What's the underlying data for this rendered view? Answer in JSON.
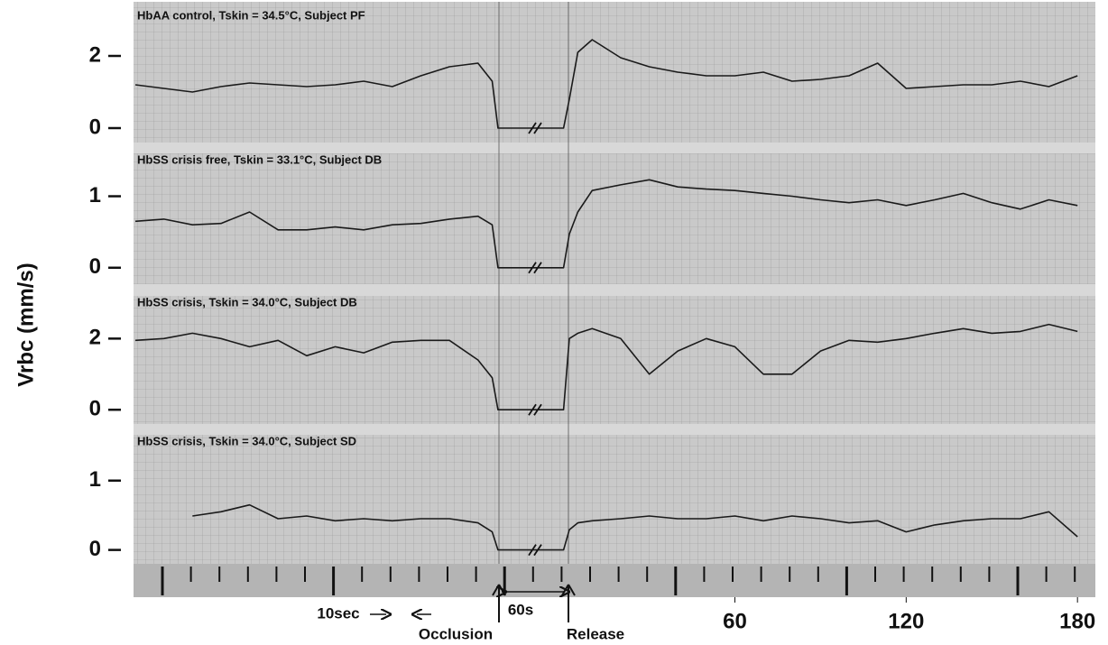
{
  "ylabel": "Vrbc (mm/s)",
  "annotations": {
    "ten_sec": "10sec",
    "sixty_s": "60s",
    "occlusion": "Occlusion",
    "release": "Release"
  },
  "chart_data": [
    {
      "type": "line",
      "title": "HbAA control, Tskin = 34.5°C, Subject PF",
      "x": [
        -150,
        -140,
        -130,
        -120,
        -110,
        -100,
        -90,
        -80,
        -70,
        -60,
        -50,
        -40,
        -30,
        -25,
        -23,
        0,
        2,
        5,
        10,
        20,
        30,
        40,
        50,
        60,
        70,
        80,
        90,
        100,
        110,
        120,
        130,
        140,
        150,
        160,
        170,
        180
      ],
      "values": [
        1.2,
        1.1,
        1.0,
        1.15,
        1.25,
        1.2,
        1.15,
        1.2,
        1.3,
        1.15,
        1.45,
        1.7,
        1.8,
        1.3,
        0,
        0,
        0.8,
        2.1,
        2.45,
        1.95,
        1.7,
        1.55,
        1.45,
        1.45,
        1.55,
        1.3,
        1.35,
        1.45,
        1.8,
        1.1,
        1.15,
        1.2,
        1.2,
        1.3,
        1.15,
        1.45
      ],
      "color": "#1a1a1a",
      "xlim": [
        -150,
        185
      ],
      "ylim": [
        -0.4,
        3.3
      ],
      "yticks": [
        0,
        2
      ]
    },
    {
      "type": "line",
      "title": "HbSS crisis free, Tskin = 33.1°C, Subject DB",
      "x": [
        -150,
        -140,
        -130,
        -120,
        -110,
        -100,
        -90,
        -80,
        -70,
        -60,
        -50,
        -40,
        -30,
        -25,
        -23,
        0,
        2,
        5,
        10,
        20,
        30,
        40,
        50,
        60,
        70,
        80,
        90,
        100,
        110,
        120,
        130,
        140,
        150,
        160,
        170,
        180
      ],
      "values": [
        0.65,
        0.68,
        0.6,
        0.62,
        0.78,
        0.53,
        0.53,
        0.57,
        0.53,
        0.6,
        0.62,
        0.68,
        0.72,
        0.6,
        0,
        0,
        0.47,
        0.78,
        1.08,
        1.16,
        1.23,
        1.13,
        1.1,
        1.08,
        1.04,
        1.0,
        0.95,
        0.91,
        0.95,
        0.87,
        0.95,
        1.04,
        0.91,
        0.82,
        0.95,
        0.87
      ],
      "color": "#1a1a1a",
      "xlim": [
        -150,
        185
      ],
      "ylim": [
        -0.23,
        1.6
      ],
      "yticks": [
        0,
        1
      ]
    },
    {
      "type": "line",
      "title": "HbSS crisis, Tskin = 34.0°C, Subject DB",
      "x": [
        -150,
        -140,
        -130,
        -120,
        -110,
        -100,
        -90,
        -80,
        -70,
        -60,
        -50,
        -40,
        -30,
        -25,
        -23,
        0,
        2,
        5,
        10,
        20,
        30,
        40,
        50,
        60,
        70,
        80,
        90,
        100,
        110,
        120,
        130,
        140,
        150,
        160,
        170,
        180
      ],
      "values": [
        1.95,
        2.0,
        2.15,
        2.0,
        1.77,
        1.95,
        1.52,
        1.77,
        1.6,
        1.9,
        1.95,
        1.95,
        1.4,
        0.9,
        0,
        0,
        2.0,
        2.15,
        2.28,
        2.0,
        1.0,
        1.65,
        2.0,
        1.77,
        1.0,
        1.0,
        1.65,
        1.95,
        1.9,
        2.0,
        2.15,
        2.28,
        2.15,
        2.2,
        2.4,
        2.2
      ],
      "color": "#1a1a1a",
      "xlim": [
        -150,
        185
      ],
      "ylim": [
        -0.4,
        3.2
      ],
      "yticks": [
        0,
        2
      ]
    },
    {
      "type": "line",
      "title": "HbSS crisis, Tskin = 34.0°C, Subject SD",
      "x": [
        -150,
        -140,
        -130,
        -120,
        -110,
        -100,
        -90,
        -80,
        -70,
        -60,
        -50,
        -40,
        -30,
        -25,
        -23,
        0,
        2,
        5,
        10,
        20,
        30,
        40,
        50,
        60,
        70,
        80,
        90,
        100,
        110,
        120,
        130,
        140,
        150,
        160,
        170,
        180
      ],
      "values": [
        null,
        null,
        0.49,
        0.55,
        0.65,
        0.45,
        0.49,
        0.42,
        0.45,
        0.42,
        0.45,
        0.45,
        0.39,
        0.26,
        0,
        0,
        0.29,
        0.39,
        0.42,
        0.45,
        0.49,
        0.45,
        0.45,
        0.49,
        0.42,
        0.49,
        0.45,
        0.39,
        0.42,
        0.26,
        0.36,
        0.42,
        0.45,
        0.45,
        0.55,
        0.19
      ],
      "color": "#1a1a1a",
      "xlim": [
        -150,
        185
      ],
      "ylim": [
        -0.2,
        1.66
      ],
      "yticks": [
        0,
        1
      ],
      "xticks": [
        60,
        120,
        180
      ]
    }
  ]
}
